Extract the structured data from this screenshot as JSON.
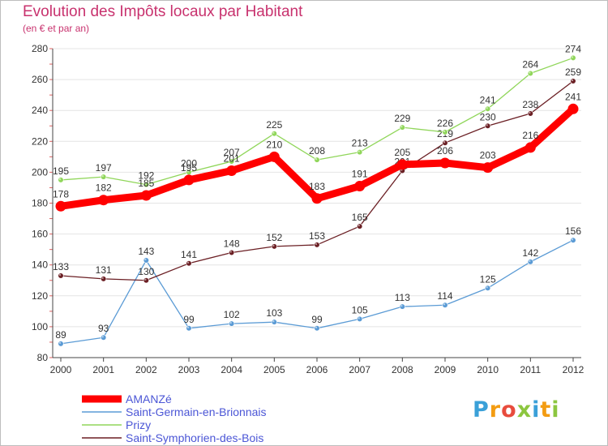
{
  "chart_data": {
    "type": "line",
    "title": "Evolution des Impôts locaux par Habitant",
    "subtitle": "(en € et par an)",
    "x": [
      2000,
      2001,
      2002,
      2003,
      2004,
      2005,
      2006,
      2007,
      2008,
      2009,
      2010,
      2011,
      2012
    ],
    "ylim": [
      80,
      280
    ],
    "yticks": [
      80,
      100,
      120,
      140,
      160,
      180,
      200,
      220,
      240,
      260,
      280
    ],
    "grid": "horizontal",
    "legend_position": "bottom-left",
    "series": [
      {
        "name": "Saint-Germain-en-Brionnais",
        "color": "#5b9bd5",
        "values": [
          89,
          93,
          143,
          99,
          102,
          103,
          99,
          105,
          113,
          114,
          125,
          142,
          156
        ]
      },
      {
        "name": "Saint-Symphorien-des-Bois",
        "color": "#6b1f24",
        "values": [
          133,
          131,
          130,
          141,
          148,
          152,
          153,
          165,
          201,
          219,
          230,
          238,
          259
        ]
      },
      {
        "name": "Prizy",
        "color": "#90d65a",
        "values": [
          195,
          197,
          192,
          200,
          207,
          225,
          208,
          213,
          229,
          226,
          241,
          264,
          274
        ]
      },
      {
        "name": "AMANZé",
        "color": "#ff0000",
        "values": [
          178,
          182,
          185,
          195,
          201,
          210,
          183,
          191,
          205,
          206,
          203,
          216,
          241
        ]
      }
    ],
    "legend_order": [
      "AMANZé",
      "Saint-Germain-en-Brionnais",
      "Prizy",
      "Saint-Symphorien-des-Bois"
    ]
  },
  "logo": {
    "letters": [
      {
        "ch": "P",
        "color": "#3aa0d8"
      },
      {
        "ch": "r",
        "color": "#f39c12"
      },
      {
        "ch": "o",
        "color": "#e84c3d"
      },
      {
        "ch": "x",
        "color": "#8cc63f"
      },
      {
        "ch": "i",
        "color": "#3aa0d8"
      },
      {
        "ch": "t",
        "color": "#f39c12"
      },
      {
        "ch": "i",
        "color": "#8cc63f"
      }
    ]
  }
}
